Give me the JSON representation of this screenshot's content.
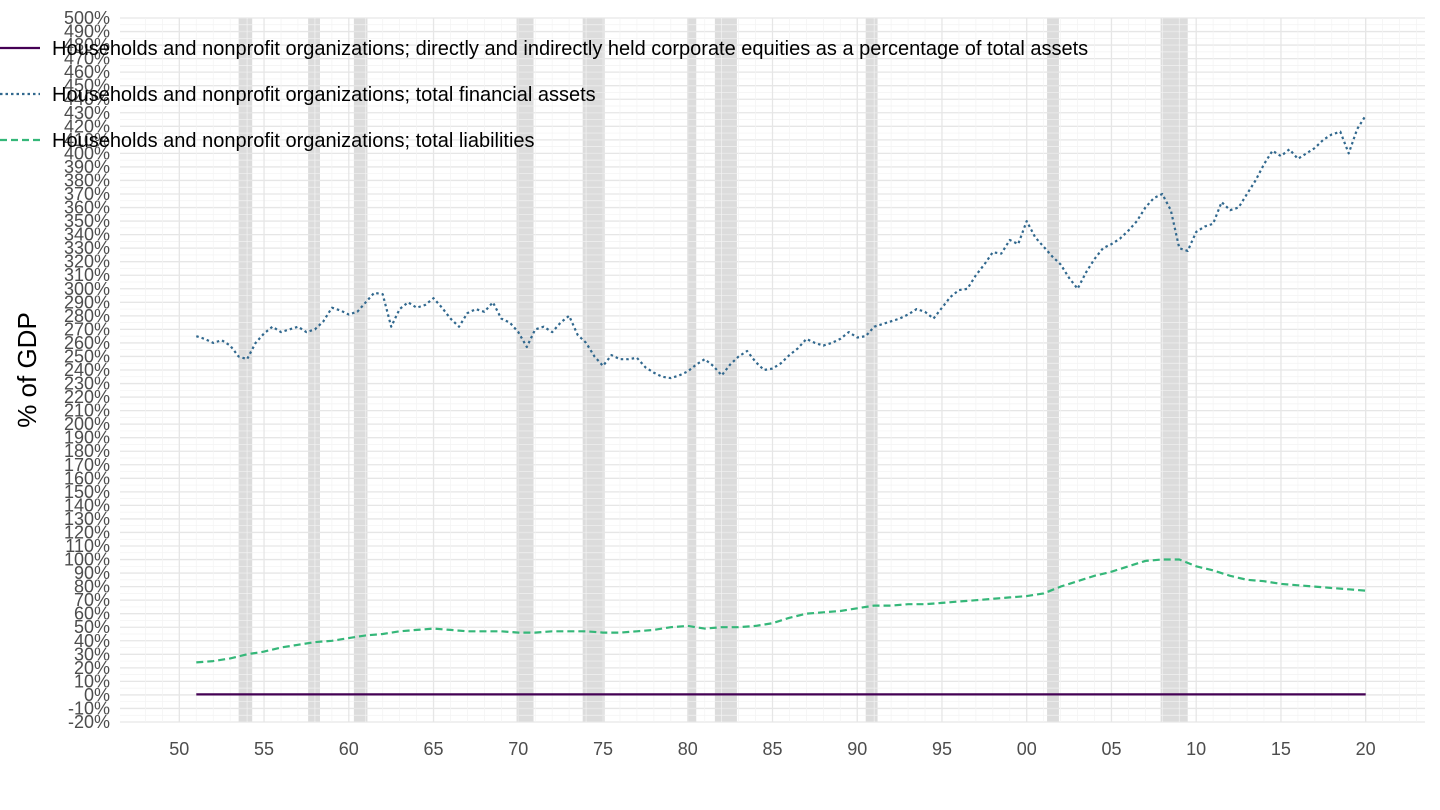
{
  "chart_data": {
    "type": "line",
    "title": "",
    "xlabel": "",
    "ylabel": "% of GDP",
    "x_unit": "year",
    "xlim": [
      1946.5,
      2023.5
    ],
    "ylim": [
      -20,
      500
    ],
    "x_ticks": [
      {
        "value": 1950,
        "label": "50"
      },
      {
        "value": 1955,
        "label": "55"
      },
      {
        "value": 1960,
        "label": "60"
      },
      {
        "value": 1965,
        "label": "65"
      },
      {
        "value": 1970,
        "label": "70"
      },
      {
        "value": 1975,
        "label": "75"
      },
      {
        "value": 1980,
        "label": "80"
      },
      {
        "value": 1985,
        "label": "85"
      },
      {
        "value": 1990,
        "label": "90"
      },
      {
        "value": 1995,
        "label": "95"
      },
      {
        "value": 2000,
        "label": "00"
      },
      {
        "value": 2005,
        "label": "05"
      },
      {
        "value": 2010,
        "label": "10"
      },
      {
        "value": 2015,
        "label": "15"
      },
      {
        "value": 2020,
        "label": "20"
      }
    ],
    "y_ticks": [
      -20,
      -10,
      0,
      10,
      20,
      30,
      40,
      50,
      60,
      70,
      80,
      90,
      100,
      110,
      120,
      130,
      140,
      150,
      160,
      170,
      180,
      190,
      200,
      210,
      220,
      230,
      240,
      250,
      260,
      270,
      280,
      290,
      300,
      310,
      320,
      330,
      340,
      350,
      360,
      370,
      380,
      390,
      400,
      410,
      420,
      430,
      440,
      450,
      460,
      470,
      480,
      490,
      500
    ],
    "y_tick_suffix": "%",
    "grid": true,
    "legend_position": "top-left",
    "recessions": [
      [
        1953.5,
        1954.3
      ],
      [
        1957.6,
        1958.3
      ],
      [
        1960.3,
        1961.1
      ],
      [
        1969.9,
        1970.9
      ],
      [
        1973.8,
        1975.1
      ],
      [
        1980.0,
        1980.5
      ],
      [
        1981.6,
        1982.9
      ],
      [
        1990.5,
        1991.2
      ],
      [
        2001.2,
        2001.9
      ],
      [
        2007.9,
        2009.5
      ]
    ],
    "recession_color": "#dcdcdc",
    "series": [
      {
        "name": "Households and nonprofit organizations; directly and indirectly held corporate equities as a percentage of total assets",
        "color": "#440154",
        "dash": "solid",
        "points": [
          [
            1951.0,
            0.4
          ],
          [
            2020.0,
            0.4
          ]
        ]
      },
      {
        "name": "Households and nonprofit organizations; total financial assets",
        "color": "#31688e",
        "dash": "dotted",
        "points": [
          [
            1951.0,
            265
          ],
          [
            1951.5,
            263
          ],
          [
            1952.0,
            260
          ],
          [
            1952.5,
            262
          ],
          [
            1953.0,
            258
          ],
          [
            1953.5,
            250
          ],
          [
            1954.0,
            248
          ],
          [
            1954.5,
            260
          ],
          [
            1955.0,
            267
          ],
          [
            1955.5,
            272
          ],
          [
            1956.0,
            268
          ],
          [
            1956.5,
            270
          ],
          [
            1957.0,
            272
          ],
          [
            1957.5,
            268
          ],
          [
            1958.0,
            270
          ],
          [
            1958.5,
            276
          ],
          [
            1959.0,
            286
          ],
          [
            1959.5,
            284
          ],
          [
            1960.0,
            281
          ],
          [
            1960.5,
            283
          ],
          [
            1961.0,
            290
          ],
          [
            1961.5,
            297
          ],
          [
            1962.0,
            296
          ],
          [
            1962.5,
            272
          ],
          [
            1963.0,
            285
          ],
          [
            1963.5,
            290
          ],
          [
            1964.0,
            286
          ],
          [
            1964.5,
            288
          ],
          [
            1965.0,
            293
          ],
          [
            1965.5,
            286
          ],
          [
            1966.0,
            278
          ],
          [
            1966.5,
            272
          ],
          [
            1967.0,
            282
          ],
          [
            1967.5,
            285
          ],
          [
            1968.0,
            283
          ],
          [
            1968.5,
            290
          ],
          [
            1969.0,
            278
          ],
          [
            1969.5,
            275
          ],
          [
            1970.0,
            268
          ],
          [
            1970.5,
            257
          ],
          [
            1971.0,
            270
          ],
          [
            1971.5,
            272
          ],
          [
            1972.0,
            268
          ],
          [
            1972.5,
            275
          ],
          [
            1973.0,
            280
          ],
          [
            1973.5,
            266
          ],
          [
            1974.0,
            260
          ],
          [
            1974.5,
            250
          ],
          [
            1975.0,
            243
          ],
          [
            1975.5,
            251
          ],
          [
            1976.0,
            248
          ],
          [
            1976.5,
            248
          ],
          [
            1977.0,
            249
          ],
          [
            1977.5,
            242
          ],
          [
            1978.0,
            238
          ],
          [
            1978.5,
            235
          ],
          [
            1979.0,
            234
          ],
          [
            1979.5,
            236
          ],
          [
            1980.0,
            239
          ],
          [
            1980.5,
            244
          ],
          [
            1981.0,
            248
          ],
          [
            1981.5,
            243
          ],
          [
            1982.0,
            236
          ],
          [
            1982.5,
            244
          ],
          [
            1983.0,
            250
          ],
          [
            1983.5,
            254
          ],
          [
            1984.0,
            246
          ],
          [
            1984.5,
            240
          ],
          [
            1985.0,
            241
          ],
          [
            1985.5,
            245
          ],
          [
            1986.0,
            251
          ],
          [
            1986.5,
            256
          ],
          [
            1987.0,
            263
          ],
          [
            1987.5,
            260
          ],
          [
            1988.0,
            258
          ],
          [
            1988.5,
            260
          ],
          [
            1989.0,
            263
          ],
          [
            1989.5,
            268
          ],
          [
            1990.0,
            264
          ],
          [
            1990.5,
            265
          ],
          [
            1991.0,
            272
          ],
          [
            1991.5,
            274
          ],
          [
            1992.0,
            276
          ],
          [
            1992.5,
            278
          ],
          [
            1993.0,
            281
          ],
          [
            1993.5,
            285
          ],
          [
            1994.0,
            283
          ],
          [
            1994.5,
            278
          ],
          [
            1995.0,
            286
          ],
          [
            1995.5,
            294
          ],
          [
            1996.0,
            299
          ],
          [
            1996.5,
            300
          ],
          [
            1997.0,
            310
          ],
          [
            1997.5,
            318
          ],
          [
            1998.0,
            327
          ],
          [
            1998.5,
            326
          ],
          [
            1999.0,
            336
          ],
          [
            1999.5,
            333
          ],
          [
            2000.0,
            350
          ],
          [
            2000.5,
            338
          ],
          [
            2001.0,
            331
          ],
          [
            2001.5,
            324
          ],
          [
            2002.0,
            318
          ],
          [
            2002.5,
            308
          ],
          [
            2003.0,
            300
          ],
          [
            2003.5,
            312
          ],
          [
            2004.0,
            322
          ],
          [
            2004.5,
            330
          ],
          [
            2005.0,
            333
          ],
          [
            2005.5,
            337
          ],
          [
            2006.0,
            343
          ],
          [
            2006.5,
            350
          ],
          [
            2007.0,
            360
          ],
          [
            2007.5,
            367
          ],
          [
            2008.0,
            370
          ],
          [
            2008.5,
            358
          ],
          [
            2009.0,
            330
          ],
          [
            2009.5,
            328
          ],
          [
            2010.0,
            342
          ],
          [
            2010.5,
            346
          ],
          [
            2011.0,
            348
          ],
          [
            2011.5,
            364
          ],
          [
            2012.0,
            358
          ],
          [
            2012.5,
            360
          ],
          [
            2013.0,
            370
          ],
          [
            2013.5,
            380
          ],
          [
            2014.0,
            392
          ],
          [
            2014.5,
            402
          ],
          [
            2015.0,
            398
          ],
          [
            2015.5,
            403
          ],
          [
            2016.0,
            396
          ],
          [
            2016.5,
            400
          ],
          [
            2017.0,
            404
          ],
          [
            2017.5,
            410
          ],
          [
            2018.0,
            414
          ],
          [
            2018.5,
            416
          ],
          [
            2019.0,
            400
          ],
          [
            2019.5,
            418
          ],
          [
            2020.0,
            428
          ]
        ]
      },
      {
        "name": "Households and nonprofit organizations; total liabilities",
        "color": "#35b779",
        "dash": "dashed",
        "points": [
          [
            1951.0,
            24
          ],
          [
            1952.0,
            25
          ],
          [
            1953.0,
            27
          ],
          [
            1954.0,
            30
          ],
          [
            1955.0,
            32
          ],
          [
            1956.0,
            35
          ],
          [
            1957.0,
            37
          ],
          [
            1958.0,
            39
          ],
          [
            1959.0,
            40
          ],
          [
            1960.0,
            42
          ],
          [
            1961.0,
            44
          ],
          [
            1962.0,
            45
          ],
          [
            1963.0,
            47
          ],
          [
            1964.0,
            48
          ],
          [
            1965.0,
            49
          ],
          [
            1966.0,
            48
          ],
          [
            1967.0,
            47
          ],
          [
            1968.0,
            47
          ],
          [
            1969.0,
            47
          ],
          [
            1970.0,
            46
          ],
          [
            1971.0,
            46
          ],
          [
            1972.0,
            47
          ],
          [
            1973.0,
            47
          ],
          [
            1974.0,
            47
          ],
          [
            1975.0,
            46
          ],
          [
            1976.0,
            46
          ],
          [
            1977.0,
            47
          ],
          [
            1978.0,
            48
          ],
          [
            1979.0,
            50
          ],
          [
            1980.0,
            51
          ],
          [
            1981.0,
            49
          ],
          [
            1982.0,
            50
          ],
          [
            1983.0,
            50
          ],
          [
            1984.0,
            51
          ],
          [
            1985.0,
            53
          ],
          [
            1986.0,
            57
          ],
          [
            1987.0,
            60
          ],
          [
            1988.0,
            61
          ],
          [
            1989.0,
            62
          ],
          [
            1990.0,
            64
          ],
          [
            1991.0,
            66
          ],
          [
            1992.0,
            66
          ],
          [
            1993.0,
            67
          ],
          [
            1994.0,
            67
          ],
          [
            1995.0,
            68
          ],
          [
            1996.0,
            69
          ],
          [
            1997.0,
            70
          ],
          [
            1998.0,
            71
          ],
          [
            1999.0,
            72
          ],
          [
            2000.0,
            73
          ],
          [
            2001.0,
            75
          ],
          [
            2002.0,
            80
          ],
          [
            2003.0,
            84
          ],
          [
            2004.0,
            88
          ],
          [
            2005.0,
            91
          ],
          [
            2006.0,
            95
          ],
          [
            2007.0,
            99
          ],
          [
            2008.0,
            100
          ],
          [
            2009.0,
            100
          ],
          [
            2010.0,
            95
          ],
          [
            2011.0,
            92
          ],
          [
            2012.0,
            88
          ],
          [
            2013.0,
            85
          ],
          [
            2014.0,
            84
          ],
          [
            2015.0,
            82
          ],
          [
            2016.0,
            81
          ],
          [
            2017.0,
            80
          ],
          [
            2018.0,
            79
          ],
          [
            2019.0,
            78
          ],
          [
            2020.0,
            77
          ]
        ]
      }
    ]
  }
}
